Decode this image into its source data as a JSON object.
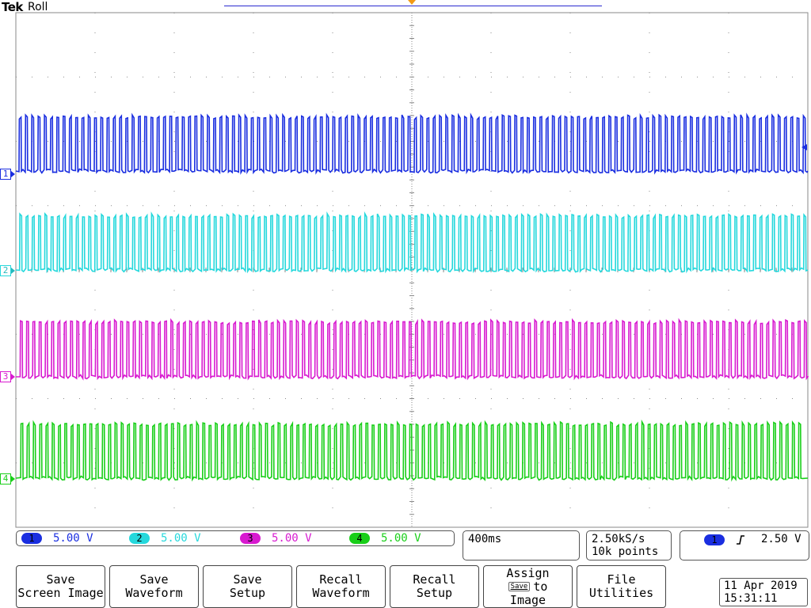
{
  "header": {
    "brand": "Tek",
    "mode": "Roll"
  },
  "colors": {
    "ch1": "#1a2ee0",
    "ch2": "#25d8dc",
    "ch3": "#d81ad0",
    "ch4": "#19cf19",
    "graticule": "#8a8a8a",
    "trigger_marker": "#f39a16"
  },
  "channels": [
    {
      "id": "1",
      "scale": "5.00 V",
      "color": "#1a2ee0"
    },
    {
      "id": "2",
      "scale": "5.00 V",
      "color": "#25d8dc"
    },
    {
      "id": "3",
      "scale": "5.00 V",
      "color": "#d81ad0"
    },
    {
      "id": "4",
      "scale": "5.00 V",
      "color": "#19cf19"
    }
  ],
  "timebase": "400ms",
  "acquisition": {
    "sample_rate": "2.50kS/s",
    "record_length": "10k points"
  },
  "trigger": {
    "source": "1",
    "slope_icon": "rising-edge-icon",
    "level": "2.50 V"
  },
  "softkeys": [
    {
      "line1": "Save",
      "line2": "Screen Image"
    },
    {
      "line1": "Save",
      "line2": "Waveform"
    },
    {
      "line1": "Save",
      "line2": "Setup"
    },
    {
      "line1": "Recall",
      "line2": "Waveform"
    },
    {
      "line1": "Recall",
      "line2": "Setup"
    },
    {
      "line1": "Assign",
      "glyph": "Save",
      "line2": "to",
      "line3": "Image"
    },
    {
      "line1": "File",
      "line2": "Utilities"
    }
  ],
  "datetime": {
    "date": "11 Apr 2019",
    "time": "15:31:11"
  }
}
